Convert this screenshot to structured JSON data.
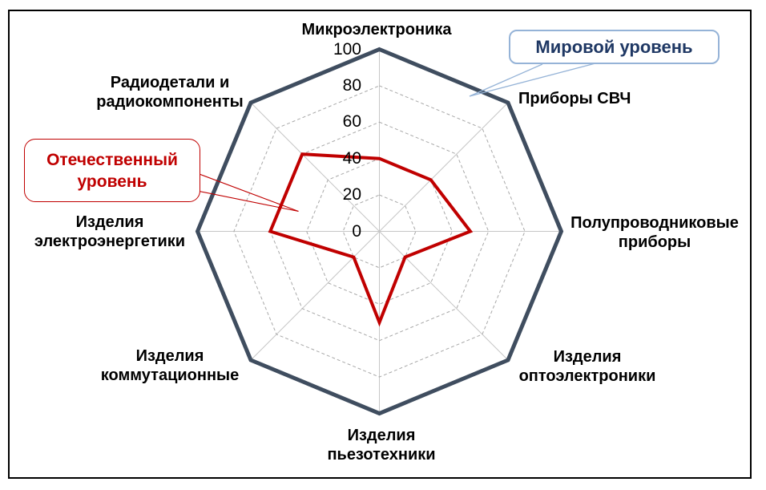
{
  "chart_data": {
    "type": "radar",
    "categories": [
      "Микроэлектроника",
      "Приборы СВЧ",
      "Полупроводниковые\nприборы",
      "Изделия\nоптоэлектроники",
      "Изделия\nпьезотехники",
      "Изделия\nкоммутационные",
      "Изделия\nэлектроэнергетики",
      "Радиодетали и\nрадиокомпоненты"
    ],
    "series": [
      {
        "name": "Мировой уровень",
        "values": [
          100,
          100,
          100,
          100,
          100,
          100,
          100,
          100
        ],
        "color": "#3F4D5F",
        "width": 5
      },
      {
        "name": "Отечественный уровень",
        "values": [
          40,
          40,
          50,
          20,
          50,
          20,
          60,
          60
        ],
        "color": "#C00000",
        "width": 4
      }
    ],
    "ticks": [
      0,
      20,
      40,
      60,
      80,
      100
    ],
    "ylim": [
      0,
      100
    ],
    "grid_rings": [
      20,
      40,
      60,
      80,
      100
    ],
    "grid": "dashed-rings",
    "legend_position": "callouts"
  },
  "callouts": {
    "world": {
      "label": "Мировой уровень",
      "text_color": "#1F3864",
      "border_color": "#95B3D7"
    },
    "domestic": {
      "label": "Отечественный уровень",
      "text_color": "#C00000",
      "border_color": "#C00000"
    }
  },
  "colors": {
    "frame_border": "#000000",
    "spoke": "#C6C6C6",
    "ring": "#A8A8A8",
    "label_text": "#000000"
  }
}
